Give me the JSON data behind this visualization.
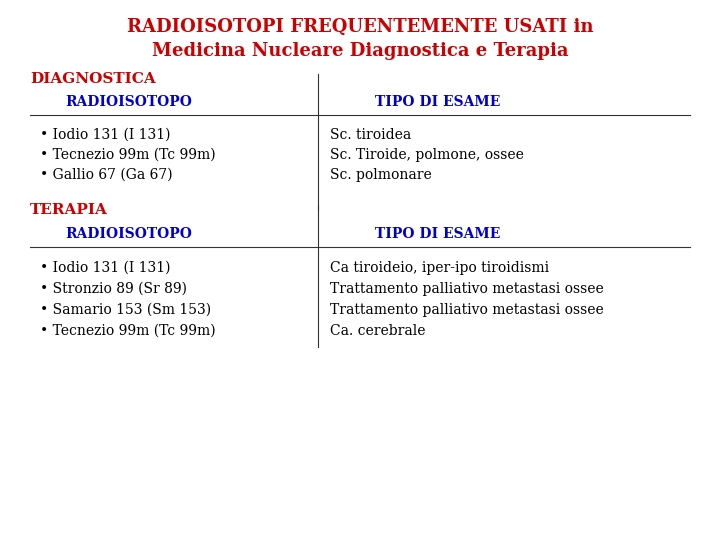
{
  "title_line1": "RADIOISOTOPI FREQUENTEMENTE USATI in",
  "title_line2": "Medicina Nucleare Diagnostica e Terapia",
  "title_color": "#cc0000",
  "section1_label": "DIAGNOSTICA",
  "section2_label": "TERAPIA",
  "section_color": "#cc0000",
  "header_color": "#0000cc",
  "header_col1": "RADIOISOTOPO",
  "header_col2": "TIPO DI ESAME",
  "diag_isotopes": [
    "• Iodio 131 (I 131)",
    "• Tecnezio 99m (Tc 99m)",
    "• Gallio 67 (Ga 67)"
  ],
  "diag_exams": [
    "Sc. tiroidea",
    "Sc. Tiroide, polmone, ossee",
    "Sc. polmonare"
  ],
  "ther_isotopes": [
    "• Iodio 131 (I 131)",
    "• Stronzio 89 (Sr 89)",
    "• Samario 153 (Sm 153)",
    "• Tecnezio 99m (Tc 99m)"
  ],
  "ther_exams": [
    "Ca tiroideio, iper-ipo tiroidismi",
    "Trattamento palliativo metastasi ossee",
    "Trattamento palliativo metastasi ossee",
    "Ca. cerebrale"
  ],
  "bg_color": "#ffffff",
  "text_color": "#000000",
  "line_color": "#333333",
  "font_size_title": 13,
  "font_size_section": 11,
  "font_size_header": 10,
  "font_size_body": 10
}
